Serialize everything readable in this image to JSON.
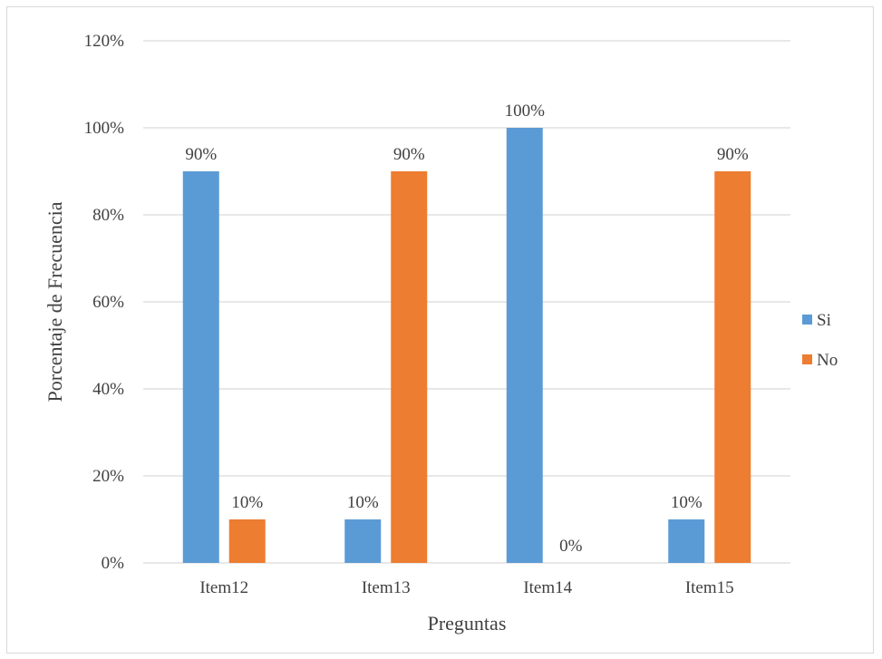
{
  "chart_data": {
    "type": "bar",
    "title": "",
    "xlabel": "Preguntas",
    "ylabel": "Porcentaje de Frecuencia",
    "categories": [
      "Item12",
      "Item13",
      "Item14",
      "Item15"
    ],
    "series": [
      {
        "name": "Si",
        "color": "#5b9bd5",
        "values": [
          0.9,
          0.1,
          1.0,
          0.1
        ],
        "labels": [
          "90%",
          "10%",
          "100%",
          "10%"
        ]
      },
      {
        "name": "No",
        "color": "#ed7d31",
        "values": [
          0.1,
          0.9,
          0.0,
          0.9
        ],
        "labels": [
          "10%",
          "90%",
          "0%",
          "90%"
        ]
      }
    ],
    "ylim": [
      0,
      1.2
    ],
    "yticks": [
      0,
      0.2,
      0.4,
      0.6,
      0.8,
      1.0,
      1.2
    ],
    "ytick_labels": [
      "0%",
      "20%",
      "40%",
      "60%",
      "80%",
      "100%",
      "120%"
    ],
    "grid": true,
    "legend_position": "right"
  }
}
